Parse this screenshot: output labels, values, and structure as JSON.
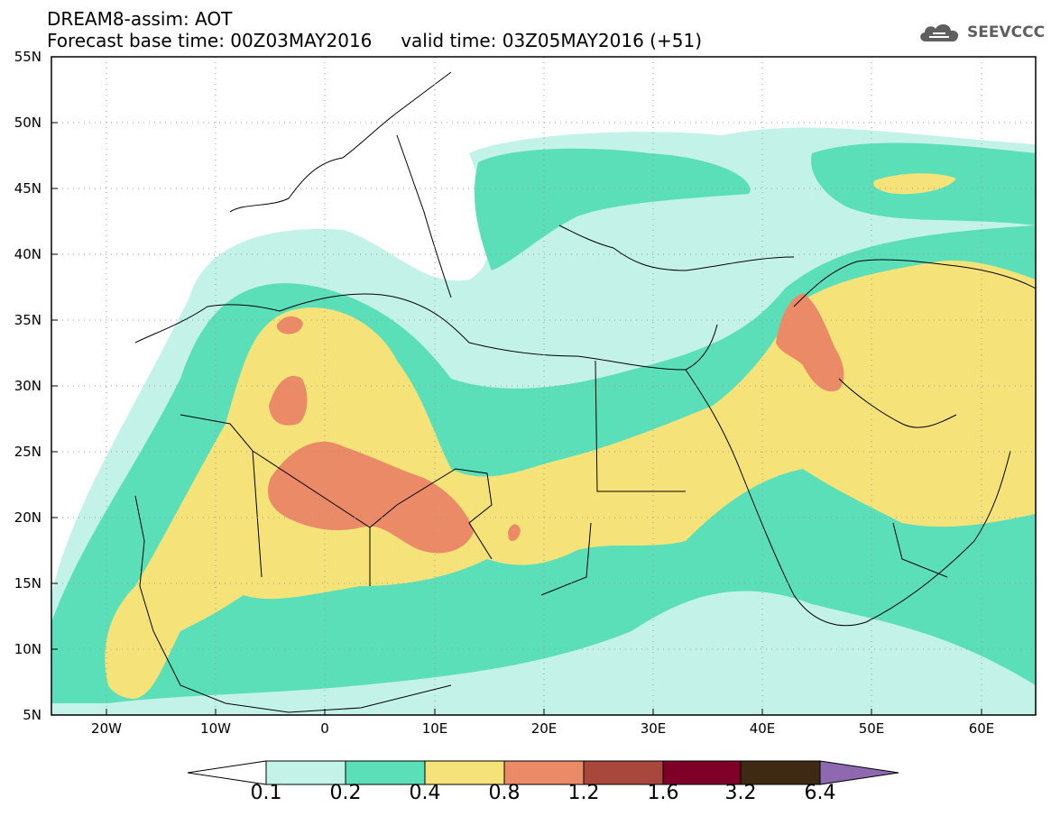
{
  "header": {
    "title_line1": "DREAM8-assim: AOT",
    "title_line2": "Forecast base time: 00Z03MAY2016     valid time: 03Z05MAY2016 (+51)"
  },
  "logo": {
    "text": "SEEVCCC",
    "icon": "cloud-logo-icon"
  },
  "map": {
    "lat_labels": [
      "55N",
      "50N",
      "45N",
      "40N",
      "35N",
      "30N",
      "25N",
      "20N",
      "15N",
      "10N",
      "5N"
    ],
    "lon_labels": [
      "20W",
      "10W",
      "0",
      "10E",
      "20E",
      "30E",
      "40E",
      "50E",
      "60E"
    ],
    "background": "#ffffff"
  },
  "colorbar": {
    "labels": [
      "0.1",
      "0.2",
      "0.4",
      "0.8",
      "1.2",
      "1.6",
      "3.2",
      "6.4"
    ],
    "colors": [
      "#ffffff",
      "#c3f2e9",
      "#5bdfb8",
      "#f5e37a",
      "#eb8a67",
      "#a8473b",
      "#7e0028",
      "#3e2a13",
      "#8e69b0"
    ]
  },
  "legend_levels": {
    "c1": "#c3f2e9",
    "c2": "#5bdfb8",
    "c3": "#f5e37a",
    "c4": "#eb8a67"
  }
}
